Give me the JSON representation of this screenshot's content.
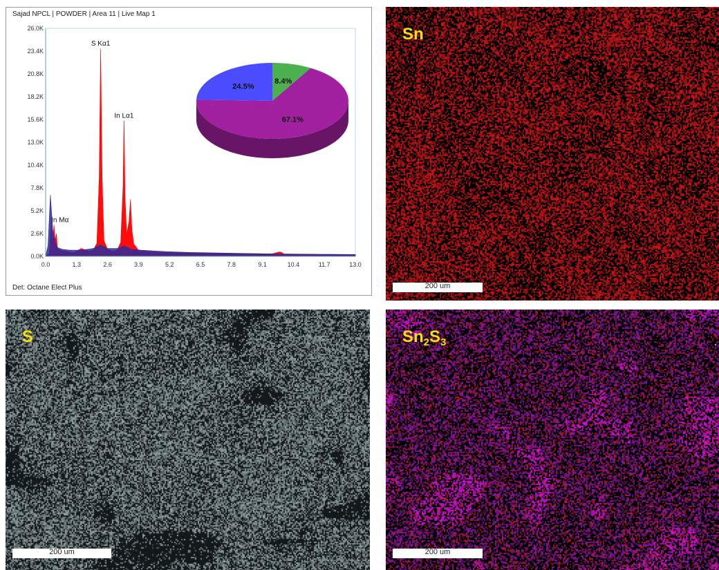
{
  "spectrum": {
    "title": "Sajad NPCL | POWDER | Area 11 | Live Map 1",
    "detector": "Det: Octane Elect Plus"
  },
  "chart_data": [
    {
      "type": "area",
      "title": "Sajad NPCL | POWDER | Area 11 | Live Map 1",
      "xlabel": "",
      "ylabel": "",
      "x_ticks": [
        "0.0",
        "1.3",
        "2.6",
        "3.9",
        "5.2",
        "6.5",
        "7.8",
        "9.1",
        "10.4",
        "11.7",
        "13.0"
      ],
      "y_ticks": [
        "0.0K",
        "2.6K",
        "5.2K",
        "7.8K",
        "10.4K",
        "13.0K",
        "15.6K",
        "18.2K",
        "20.8K",
        "23.4K",
        "26.0K"
      ],
      "xlim": [
        0,
        13.0
      ],
      "ylim": [
        0,
        26000
      ],
      "peaks": [
        {
          "label": "S Kα1",
          "x": 2.31,
          "y": 23700
        },
        {
          "label": "In Lα1",
          "x": 3.29,
          "y": 15500
        },
        {
          "label": "In Mα",
          "x": 0.37,
          "y": 3600
        }
      ],
      "series": [
        {
          "color": "#ff0000",
          "x": [
            0.0,
            0.15,
            0.25,
            0.3,
            0.35,
            0.4,
            0.45,
            0.5,
            0.6,
            0.8,
            1.0,
            1.2,
            1.5,
            1.8,
            2.0,
            2.15,
            2.25,
            2.31,
            2.37,
            2.45,
            2.6,
            2.8,
            3.0,
            3.15,
            3.25,
            3.29,
            3.33,
            3.4,
            3.5,
            3.56,
            3.62,
            3.7,
            3.9,
            4.2,
            4.6,
            5.0,
            5.5,
            6.0,
            6.5,
            7.0,
            7.5,
            8.0,
            8.5,
            9.0,
            9.5,
            9.8,
            9.9,
            10.0,
            10.5,
            11.0,
            11.5,
            12.0,
            12.5,
            13.0
          ],
          "y": [
            0,
            300,
            4000,
            1500,
            3600,
            1800,
            2600,
            900,
            700,
            600,
            500,
            450,
            900,
            600,
            700,
            1500,
            9000,
            23700,
            9000,
            1800,
            800,
            600,
            700,
            1600,
            8000,
            15500,
            7000,
            2500,
            4000,
            6500,
            3000,
            1400,
            700,
            600,
            500,
            450,
            420,
            400,
            380,
            360,
            340,
            320,
            300,
            300,
            280,
            500,
            450,
            280,
            260,
            250,
            240,
            230,
            220,
            210
          ]
        },
        {
          "color": "#2c2c9c",
          "x": [
            0.0,
            0.1,
            0.2,
            0.3,
            0.4,
            0.5,
            0.7,
            1.0,
            1.5,
            2.0,
            2.3,
            2.6,
            3.0,
            3.3,
            3.6,
            4.0,
            5.0,
            6.0,
            8.0,
            10.0,
            13.0
          ],
          "y": [
            0,
            1200,
            7000,
            3000,
            1600,
            1000,
            800,
            700,
            700,
            900,
            1300,
            900,
            900,
            1200,
            800,
            700,
            550,
            450,
            350,
            250,
            200
          ]
        }
      ]
    },
    {
      "type": "pie",
      "labels": [
        "24.5%",
        "8.4%",
        "67.1%"
      ],
      "values": [
        24.5,
        8.4,
        67.1
      ],
      "colors": [
        "#4b4bff",
        "#4caf50",
        "#a020a0"
      ]
    }
  ],
  "maps": [
    {
      "label": "Sn",
      "scalebar": "200 um",
      "colors": [
        "#d01c1c"
      ]
    },
    {
      "label": "S",
      "scalebar": "200 um",
      "colors": [
        "#9aa9ad"
      ]
    },
    {
      "label_main": "Sn",
      "sub1": "2",
      "label_mid": "S",
      "sub2": "3",
      "scalebar": "200 um",
      "colors": [
        "#8e1aa8",
        "#c21ad0",
        "#c02222",
        "#b8e0e8"
      ]
    }
  ]
}
